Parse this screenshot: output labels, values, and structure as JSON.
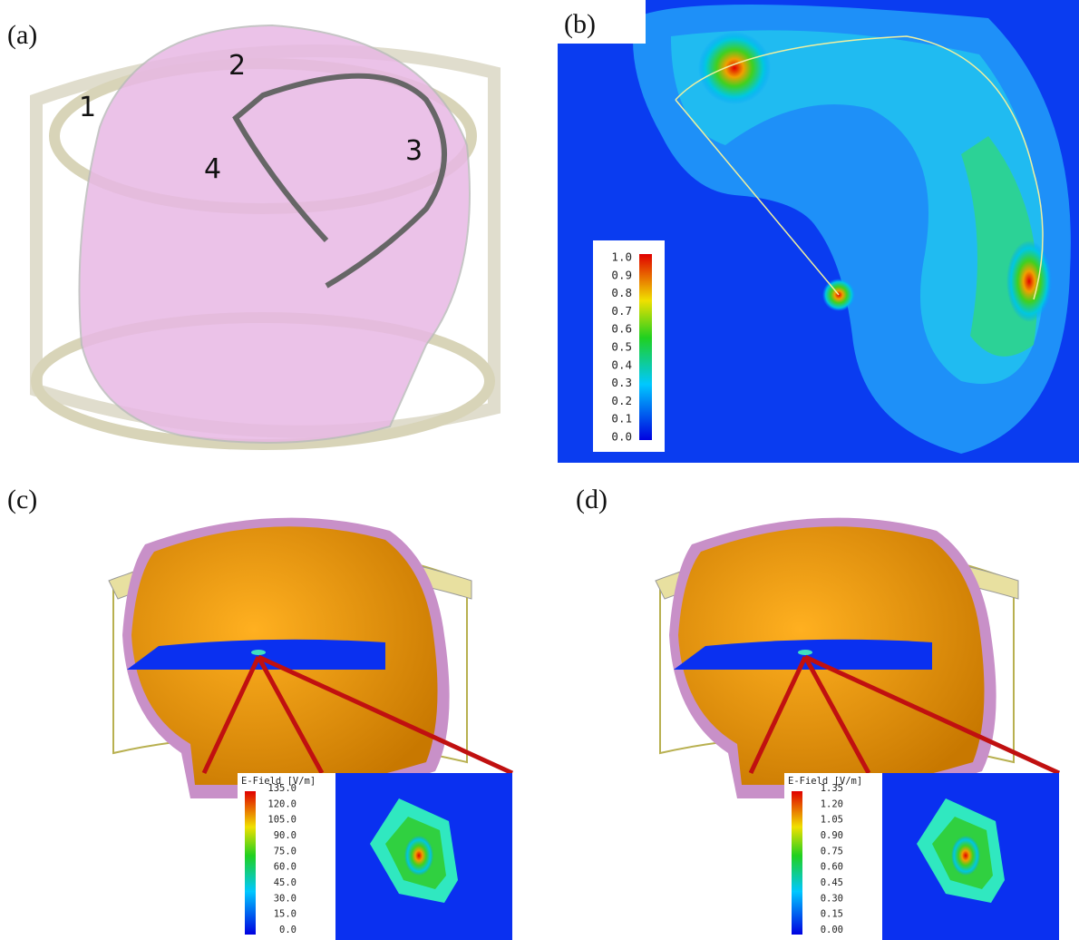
{
  "panels": [
    {
      "label": "(a)",
      "annotations": [
        "1",
        "2",
        "3",
        "4"
      ]
    },
    {
      "label": "(b)",
      "colorbar": {
        "ticks": [
          "1.0",
          "0.9",
          "0.8",
          "0.7",
          "0.6",
          "0.5",
          "0.4",
          "0.3",
          "0.2",
          "0.1",
          "0.0"
        ]
      }
    },
    {
      "label": "(c)",
      "colorbar": {
        "title": "E-Field [V/m]",
        "ticks": [
          "135.0",
          "120.0",
          "105.0",
          "90.0",
          "75.0",
          "60.0",
          "45.0",
          "30.0",
          "15.0",
          "0.0"
        ]
      }
    },
    {
      "label": "(d)",
      "colorbar": {
        "title": "E-Field [V/m]",
        "ticks": [
          "1.35",
          "1.20",
          "1.05",
          "0.90",
          "0.75",
          "0.60",
          "0.45",
          "0.30",
          "0.15",
          "0.00"
        ]
      }
    }
  ]
}
